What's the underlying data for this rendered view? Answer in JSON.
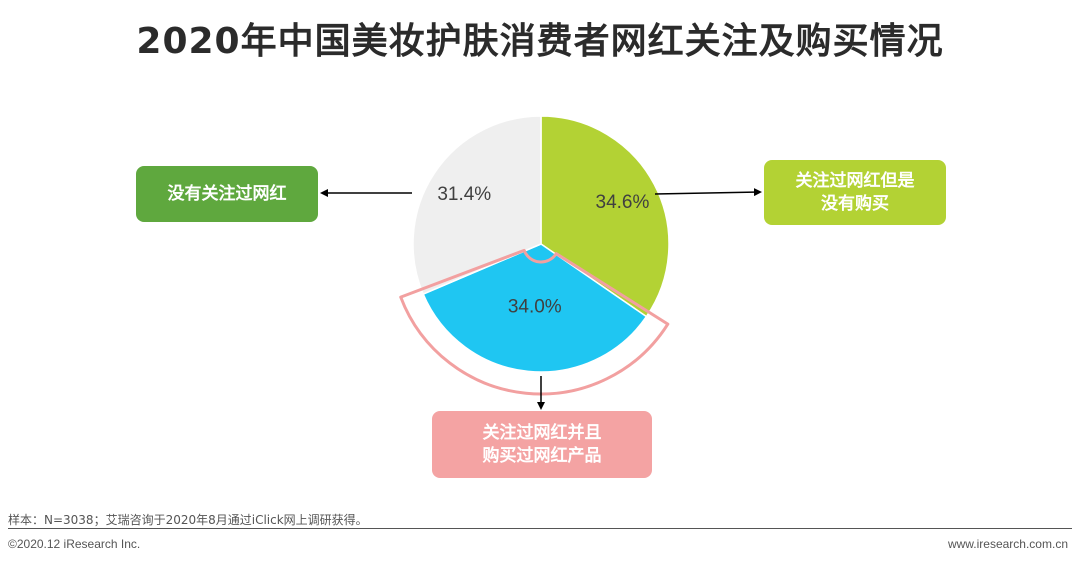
{
  "title": "2020年中国美妆护肤消费者网红关注及购买情况",
  "chart_data": {
    "type": "pie",
    "slices": [
      {
        "label": "关注过网红但是没有购买",
        "value": 34.6,
        "value_text": "34.6%",
        "color": "#b3d234"
      },
      {
        "label": "关注过网红并且购买过网红产品",
        "value": 34.0,
        "value_text": "34.0%",
        "color": "#1fc6f2",
        "highlighted": true
      },
      {
        "label": "没有关注过网红",
        "value": 31.4,
        "value_text": "31.4%",
        "color": "#efefef"
      }
    ],
    "highlight_color": "#f2a0a0"
  },
  "callouts": {
    "left": {
      "lines": [
        "没有关注过网红"
      ],
      "color": "#5fa83e"
    },
    "right": {
      "lines": [
        "关注过网红但是",
        "没有购买"
      ],
      "color": "#b3d234"
    },
    "bottom": {
      "lines": [
        "关注过网红并且",
        "购买过网红产品"
      ],
      "color": "#f4a3a3"
    }
  },
  "footer": {
    "sample_note": "样本：N=3038；艾瑞咨询于2020年8月通过iClick网上调研获得。",
    "copyright": "©2020.12 iResearch Inc.",
    "website": "www.iresearch.com.cn"
  }
}
